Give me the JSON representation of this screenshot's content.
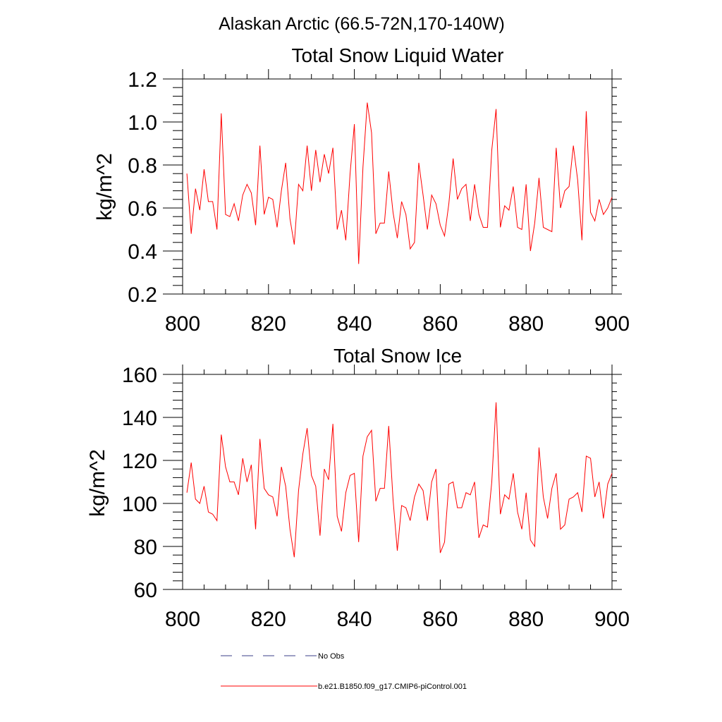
{
  "figure": {
    "suptitle": "Alaskan Arctic (66.5-72N,170-140W)"
  },
  "legend": {
    "items": [
      {
        "label": "No Obs",
        "color": "#3b3f8a",
        "dash": "dashed"
      },
      {
        "label": "b.e21.B1850.f09_g17.CMIP6-piControl.001",
        "color": "#ff0000",
        "dash": "solid"
      }
    ]
  },
  "chart_data": [
    {
      "type": "line",
      "title": "Total Snow Liquid Water",
      "xlabel": "",
      "ylabel": "kg/m^2",
      "xlim": [
        800,
        900
      ],
      "ylim": [
        0.2,
        1.2
      ],
      "xticks": [
        800,
        820,
        840,
        860,
        880,
        900
      ],
      "xtick_labels": [
        "800",
        "820",
        "840",
        "860",
        "880",
        "900"
      ],
      "yticks": [
        0.2,
        0.4,
        0.6,
        0.8,
        1.0,
        1.2
      ],
      "ytick_labels": [
        "0.2",
        "0.4",
        "0.6",
        "0.8",
        "1.0",
        "1.2"
      ],
      "grid": false,
      "x": [
        801,
        802,
        803,
        804,
        805,
        806,
        807,
        808,
        809,
        810,
        811,
        812,
        813,
        814,
        815,
        816,
        817,
        818,
        819,
        820,
        821,
        822,
        823,
        824,
        825,
        826,
        827,
        828,
        829,
        830,
        831,
        832,
        833,
        834,
        835,
        836,
        837,
        838,
        839,
        840,
        841,
        842,
        843,
        844,
        845,
        846,
        847,
        848,
        849,
        850,
        851,
        852,
        853,
        854,
        855,
        856,
        857,
        858,
        859,
        860,
        861,
        862,
        863,
        864,
        865,
        866,
        867,
        868,
        869,
        870,
        871,
        872,
        873,
        874,
        875,
        876,
        877,
        878,
        879,
        880,
        881,
        882,
        883,
        884,
        885,
        886,
        887,
        888,
        889,
        890,
        891,
        892,
        893,
        894,
        895,
        896,
        897,
        898,
        899,
        900
      ],
      "series": [
        {
          "name": "b.e21.B1850.f09_g17.CMIP6-piControl.001",
          "color": "#ff0000",
          "values": [
            0.76,
            0.48,
            0.69,
            0.59,
            0.78,
            0.63,
            0.63,
            0.5,
            1.04,
            0.57,
            0.56,
            0.62,
            0.54,
            0.66,
            0.71,
            0.67,
            0.52,
            0.89,
            0.57,
            0.65,
            0.64,
            0.51,
            0.68,
            0.81,
            0.55,
            0.43,
            0.71,
            0.68,
            0.89,
            0.68,
            0.87,
            0.72,
            0.85,
            0.76,
            0.88,
            0.5,
            0.59,
            0.45,
            0.76,
            0.99,
            0.34,
            0.79,
            1.09,
            0.95,
            0.48,
            0.53,
            0.53,
            0.77,
            0.58,
            0.46,
            0.63,
            0.57,
            0.41,
            0.44,
            0.81,
            0.66,
            0.5,
            0.66,
            0.62,
            0.52,
            0.47,
            0.62,
            0.83,
            0.64,
            0.69,
            0.71,
            0.54,
            0.71,
            0.57,
            0.51,
            0.51,
            0.87,
            1.06,
            0.51,
            0.61,
            0.59,
            0.7,
            0.51,
            0.5,
            0.71,
            0.4,
            0.53,
            0.74,
            0.51,
            0.5,
            0.49,
            0.88,
            0.6,
            0.68,
            0.7,
            0.89,
            0.73,
            0.45,
            1.05,
            0.58,
            0.54,
            0.64,
            0.57,
            0.6,
            0.65
          ]
        }
      ]
    },
    {
      "type": "line",
      "title": "Total Snow Ice",
      "xlabel": "",
      "ylabel": "kg/m^2",
      "xlim": [
        800,
        900
      ],
      "ylim": [
        60,
        160
      ],
      "xticks": [
        800,
        820,
        840,
        860,
        880,
        900
      ],
      "xtick_labels": [
        "800",
        "820",
        "840",
        "860",
        "880",
        "900"
      ],
      "yticks": [
        60,
        80,
        100,
        120,
        140,
        160
      ],
      "ytick_labels": [
        "60",
        "80",
        "100",
        "120",
        "140",
        "160"
      ],
      "grid": false,
      "x": [
        801,
        802,
        803,
        804,
        805,
        806,
        807,
        808,
        809,
        810,
        811,
        812,
        813,
        814,
        815,
        816,
        817,
        818,
        819,
        820,
        821,
        822,
        823,
        824,
        825,
        826,
        827,
        828,
        829,
        830,
        831,
        832,
        833,
        834,
        835,
        836,
        837,
        838,
        839,
        840,
        841,
        842,
        843,
        844,
        845,
        846,
        847,
        848,
        849,
        850,
        851,
        852,
        853,
        854,
        855,
        856,
        857,
        858,
        859,
        860,
        861,
        862,
        863,
        864,
        865,
        866,
        867,
        868,
        869,
        870,
        871,
        872,
        873,
        874,
        875,
        876,
        877,
        878,
        879,
        880,
        881,
        882,
        883,
        884,
        885,
        886,
        887,
        888,
        889,
        890,
        891,
        892,
        893,
        894,
        895,
        896,
        897,
        898,
        899,
        900
      ],
      "series": [
        {
          "name": "b.e21.B1850.f09_g17.CMIP6-piControl.001",
          "color": "#ff0000",
          "values": [
            105,
            119,
            102,
            100,
            108,
            96,
            95,
            92,
            132,
            117,
            110,
            110,
            104,
            121,
            110,
            118,
            88,
            130,
            107,
            104,
            103,
            94,
            117,
            108,
            88,
            75,
            106,
            123,
            135,
            113,
            108,
            85,
            116,
            111,
            137,
            94,
            87,
            105,
            113,
            114,
            82,
            122,
            131,
            134,
            101,
            107,
            107,
            136,
            102,
            78,
            99,
            98,
            92,
            103,
            109,
            106,
            92,
            110,
            116,
            77,
            82,
            109,
            110,
            98,
            98,
            105,
            104,
            110,
            84,
            90,
            89,
            110,
            147,
            95,
            104,
            102,
            114,
            96,
            88,
            105,
            83,
            80,
            126,
            103,
            93,
            107,
            114,
            88,
            90,
            102,
            103,
            105,
            96,
            122,
            121,
            103,
            110,
            93,
            109,
            114
          ]
        }
      ]
    }
  ]
}
